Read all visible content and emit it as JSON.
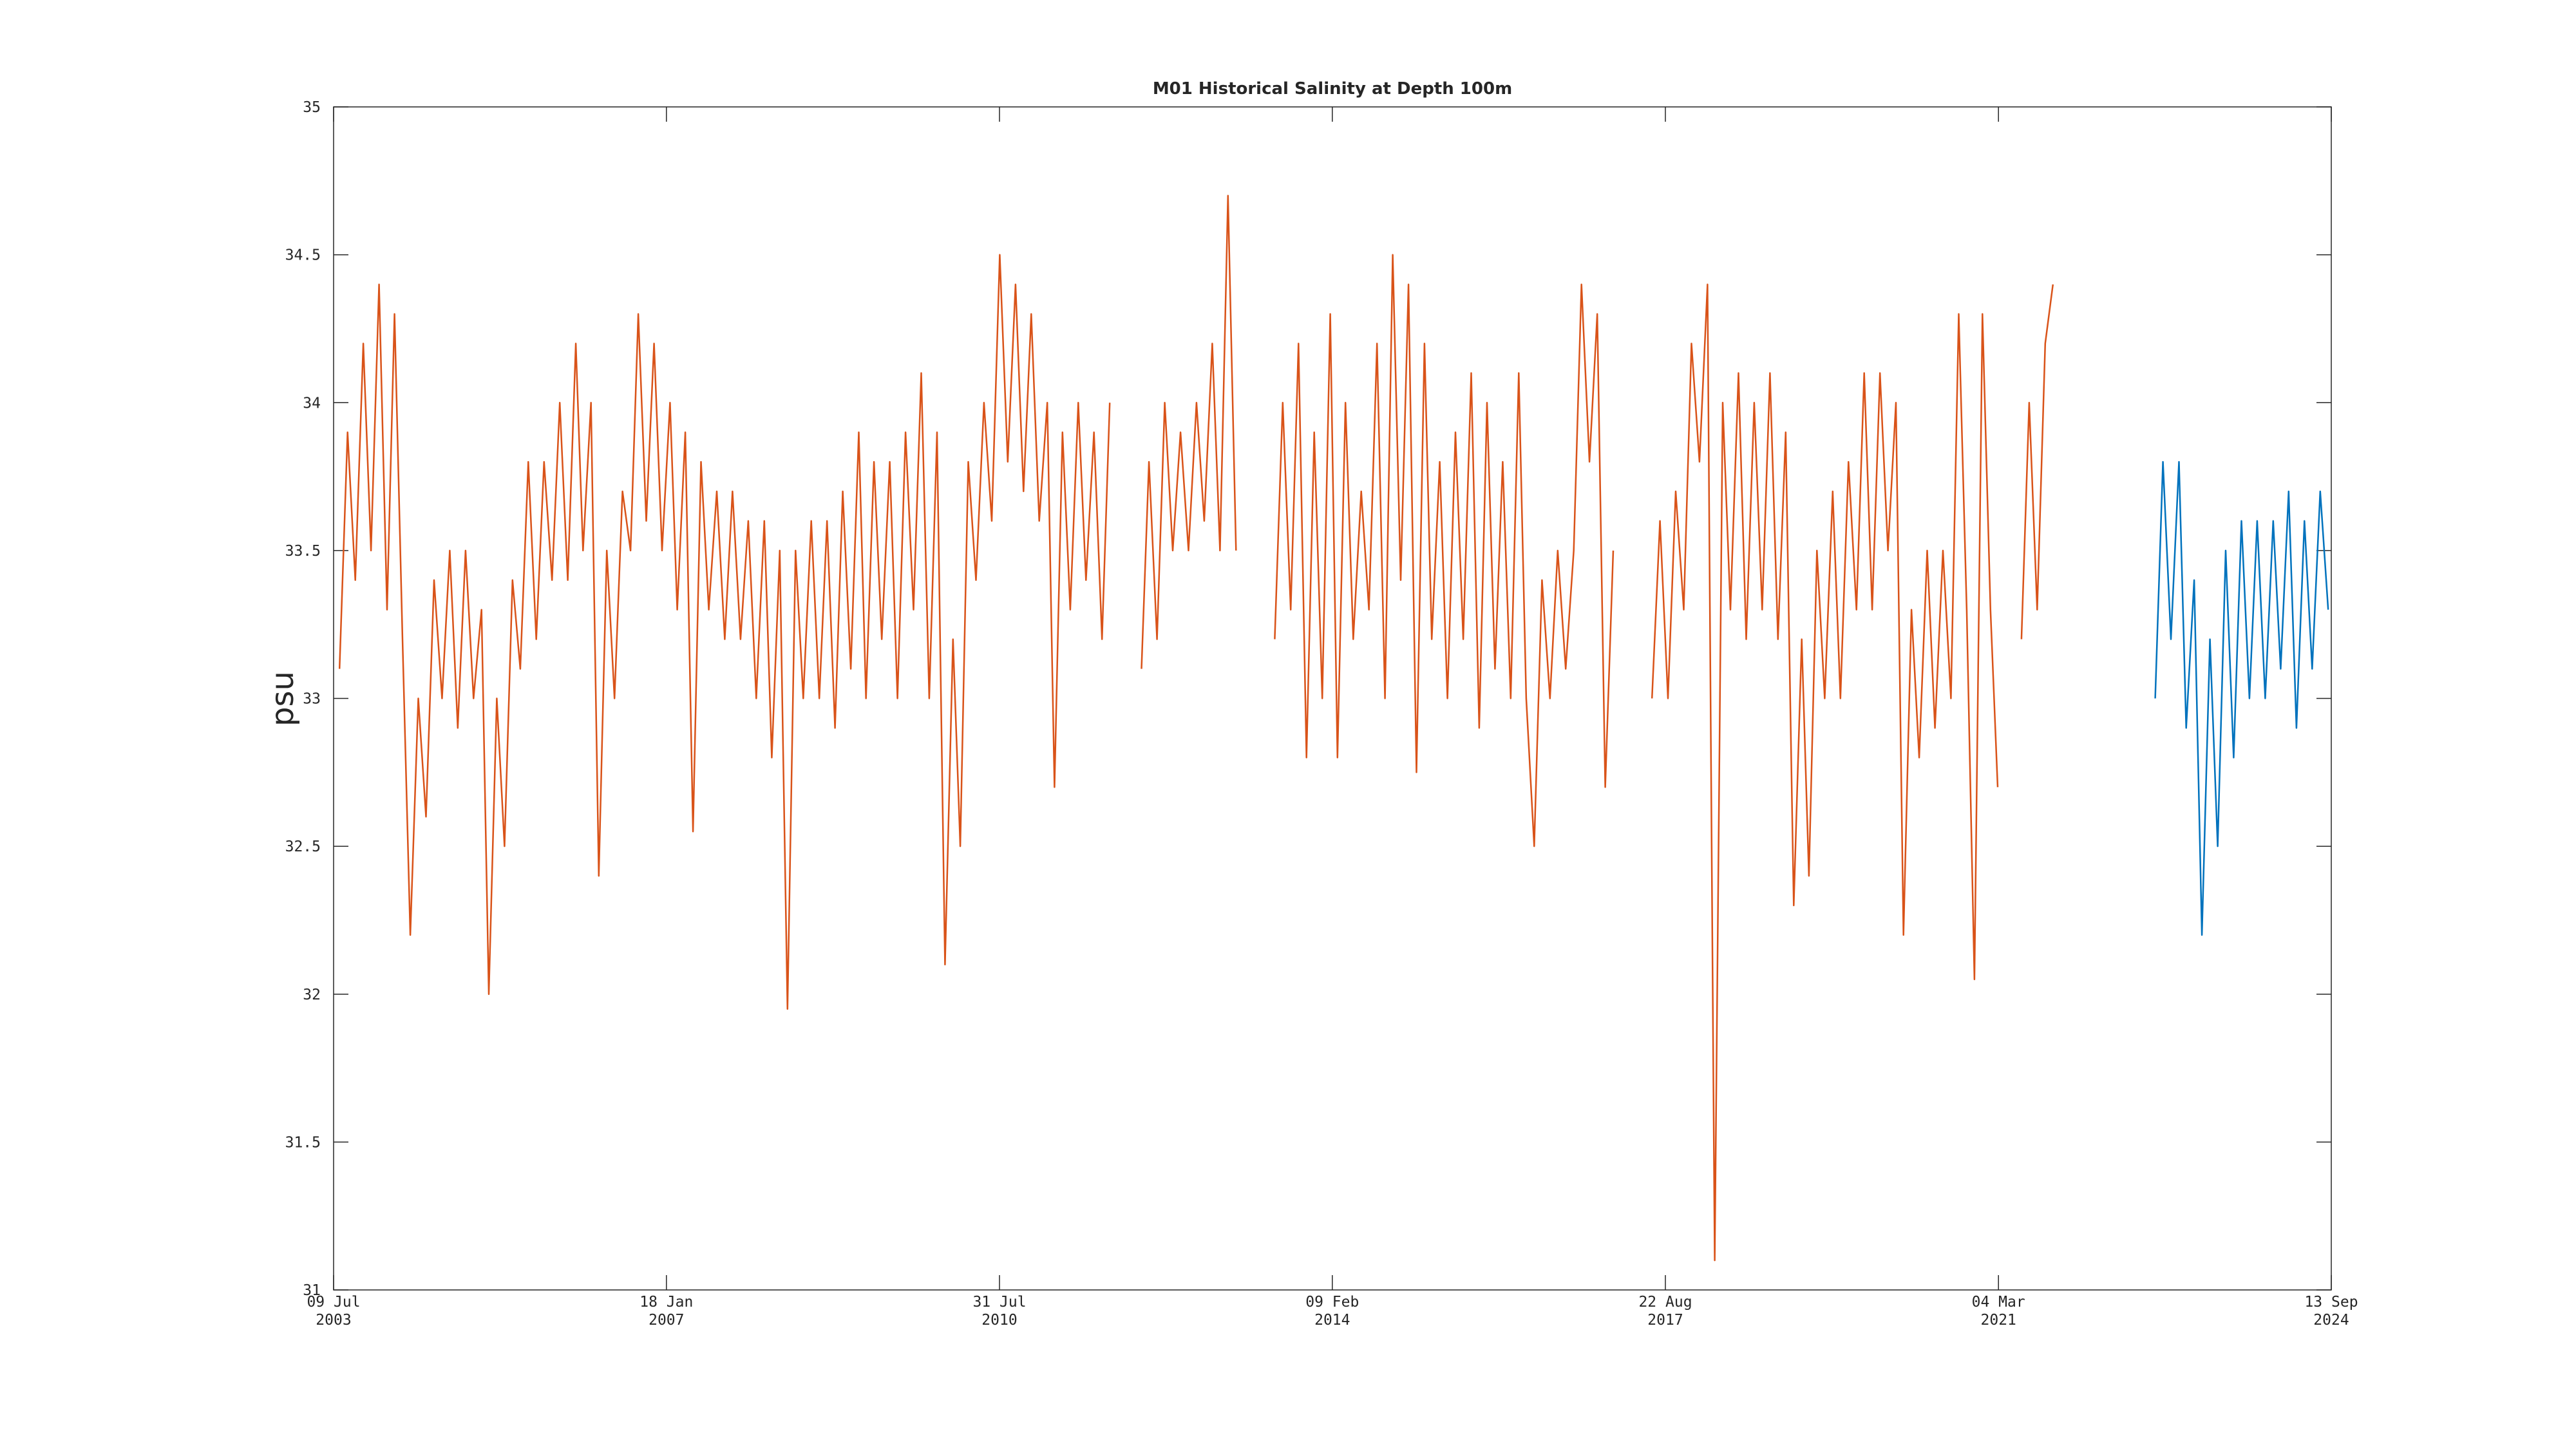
{
  "chart_data": {
    "type": "line",
    "title": "M01 Historical Salinity at Depth 100m",
    "y_label": "psu",
    "xlim": [
      "2003-07-09",
      "2024-09-13"
    ],
    "xticks": [
      {
        "value": "2003-07-09",
        "label": [
          "09 Jul",
          "2003"
        ]
      },
      {
        "value": "2007-01-18",
        "label": [
          "18 Jan",
          "2007"
        ]
      },
      {
        "value": "2010-07-31",
        "label": [
          "31 Jul",
          "2010"
        ]
      },
      {
        "value": "2014-02-09",
        "label": [
          "09 Feb",
          "2014"
        ]
      },
      {
        "value": "2017-08-22",
        "label": [
          "22 Aug",
          "2017"
        ]
      },
      {
        "value": "2021-03-04",
        "label": [
          "04 Mar",
          "2021"
        ]
      },
      {
        "value": "2024-09-13",
        "label": [
          "13 Sep",
          "2024"
        ]
      }
    ],
    "ylim": [
      31,
      35
    ],
    "yticks": [
      31,
      31.5,
      32,
      32.5,
      33,
      33.5,
      34,
      34.5,
      35
    ],
    "grid": false,
    "series": [
      {
        "color": "#D95319",
        "x": [
          "2003-08-01",
          "2003-09-01",
          "2003-10-01",
          "2003-11-01",
          "2003-12-01",
          "2004-01-01",
          "2004-02-01",
          "2004-03-01",
          "2004-04-01",
          "2004-05-01",
          "2004-06-01",
          "2004-07-01",
          "2004-08-01",
          "2004-09-01",
          "2004-10-01",
          "2004-11-01",
          "2004-12-01",
          "2005-01-01",
          "2005-02-01",
          "2005-03-01",
          "2005-04-01",
          "2005-05-01",
          "2005-06-01",
          "2005-07-01",
          "2005-08-01",
          "2005-09-01",
          "2005-10-01",
          "2005-11-01",
          "2005-12-01",
          "2006-01-01",
          "2006-02-01",
          "2006-03-01",
          "2006-04-01",
          "2006-05-01",
          "2006-06-01",
          "2006-07-01",
          "2006-08-01",
          "2006-09-01",
          "2006-10-01",
          "2006-11-01",
          "2006-12-01",
          "2007-01-01",
          "2007-02-01",
          "2007-03-01",
          "2007-04-01",
          "2007-05-01",
          "2007-06-01",
          "2007-07-01",
          "2007-08-01",
          "2007-09-01",
          "2007-10-01",
          "2007-11-01",
          "2007-12-01",
          "2008-01-01",
          "2008-02-01",
          "2008-03-01",
          "2008-04-01",
          "2008-05-01",
          "2008-06-01",
          "2008-07-01",
          "2008-08-01",
          "2008-09-01",
          "2008-10-01",
          "2008-11-01",
          "2008-12-01",
          "2009-01-01",
          "2009-02-01",
          "2009-03-01",
          "2009-04-01",
          "2009-05-01",
          "2009-06-01",
          "2009-07-01",
          "2009-08-01",
          "2009-09-01",
          "2009-10-01",
          "2009-11-01",
          "2009-12-01",
          "2010-01-01",
          "2010-02-01",
          "2010-03-01",
          "2010-04-01",
          "2010-05-01",
          "2010-06-01",
          "2010-07-01",
          "2010-08-01",
          "2010-09-01",
          "2010-10-01",
          "2010-11-01",
          "2010-12-01",
          "2011-01-01",
          "2011-02-01",
          "2011-03-01",
          "2011-04-01",
          "2011-05-01",
          "2011-06-01",
          "2011-07-01",
          "2011-08-01",
          "2011-09-01",
          "2011-10-01",
          "2011-11-01",
          "2011-12-01",
          "2012-01-01",
          "2012-02-01",
          "2012-03-01",
          "2012-04-01",
          "2012-05-01",
          "2012-06-01",
          "2012-07-01",
          "2012-08-01",
          "2012-09-01",
          "2012-10-01",
          "2012-11-01",
          "2012-12-01",
          "2013-01-01",
          "2013-02-01",
          "2013-03-01",
          "2013-04-01",
          "2013-05-01",
          "2013-06-01",
          "2013-07-01",
          "2013-08-01",
          "2013-09-01",
          "2013-10-01",
          "2013-11-01",
          "2013-12-01",
          "2014-01-01",
          "2014-02-01",
          "2014-03-01",
          "2014-04-01",
          "2014-05-01",
          "2014-06-01",
          "2014-07-01",
          "2014-08-01",
          "2014-09-01",
          "2014-10-01",
          "2014-11-01",
          "2014-12-01",
          "2015-01-01",
          "2015-02-01",
          "2015-03-01",
          "2015-04-01",
          "2015-05-01",
          "2015-06-01",
          "2015-07-01",
          "2015-08-01",
          "2015-09-01",
          "2015-10-01",
          "2015-11-01",
          "2015-12-01",
          "2016-01-01",
          "2016-02-01",
          "2016-03-01",
          "2016-04-01",
          "2016-05-01",
          "2016-06-01",
          "2016-07-01",
          "2016-08-01",
          "2016-09-01",
          "2016-10-01",
          "2016-11-01",
          "2016-12-01",
          "2017-01-01",
          "2017-02-01",
          "2017-03-01",
          "2017-04-01",
          "2017-05-01",
          "2017-06-01",
          "2017-07-01",
          "2017-08-01",
          "2017-09-01",
          "2017-10-01",
          "2017-11-01",
          "2017-12-01",
          "2018-01-01",
          "2018-02-01",
          "2018-03-01",
          "2018-04-01",
          "2018-05-01",
          "2018-06-01",
          "2018-07-01",
          "2018-08-01",
          "2018-09-01",
          "2018-10-01",
          "2018-11-01",
          "2018-12-01",
          "2019-01-01",
          "2019-02-01",
          "2019-03-01",
          "2019-04-01",
          "2019-05-01",
          "2019-06-01",
          "2019-07-01",
          "2019-08-01",
          "2019-09-01",
          "2019-10-01",
          "2019-11-01",
          "2019-12-01",
          "2020-01-01",
          "2020-02-01",
          "2020-03-01",
          "2020-04-01",
          "2020-05-01",
          "2020-06-01",
          "2020-07-01",
          "2020-08-01",
          "2020-09-01",
          "2020-10-01",
          "2020-11-01",
          "2020-12-01",
          "2021-01-01",
          "2021-02-01",
          "2021-03-01",
          "2021-04-01",
          "2021-05-01",
          "2021-06-01",
          "2021-07-01",
          "2021-08-01",
          "2021-09-01",
          "2021-10-01"
        ],
        "values": [
          33.1,
          33.9,
          33.4,
          34.2,
          33.5,
          34.4,
          33.3,
          34.3,
          33.2,
          32.2,
          33.0,
          32.6,
          33.4,
          33.0,
          33.5,
          32.9,
          33.5,
          33.0,
          33.3,
          32.0,
          33.0,
          32.5,
          33.4,
          33.1,
          33.8,
          33.2,
          33.8,
          33.4,
          34.0,
          33.4,
          34.2,
          33.5,
          34.0,
          32.4,
          33.5,
          33.0,
          33.7,
          33.5,
          34.3,
          33.6,
          34.2,
          33.5,
          34.0,
          33.3,
          33.9,
          32.55,
          33.8,
          33.3,
          33.7,
          33.2,
          33.7,
          33.2,
          33.6,
          33.0,
          33.6,
          32.8,
          33.5,
          31.95,
          33.5,
          33.0,
          33.6,
          33.0,
          33.6,
          32.9,
          33.7,
          33.1,
          33.9,
          33.0,
          33.8,
          33.2,
          33.8,
          33.0,
          33.9,
          33.3,
          34.1,
          33.0,
          33.9,
          32.1,
          33.2,
          32.5,
          33.8,
          33.4,
          34.0,
          33.6,
          34.5,
          33.8,
          34.4,
          33.7,
          34.3,
          33.6,
          34.0,
          32.7,
          33.9,
          33.3,
          34.0,
          33.4,
          33.9,
          33.2,
          34.0,
          null,
          null,
          null,
          33.1,
          33.8,
          33.2,
          34.0,
          33.5,
          33.9,
          33.5,
          34.0,
          33.6,
          34.2,
          33.5,
          34.7,
          33.5,
          null,
          null,
          null,
          null,
          33.2,
          34.0,
          33.3,
          34.2,
          32.8,
          33.9,
          33.0,
          34.3,
          32.8,
          34.0,
          33.2,
          33.7,
          33.3,
          34.2,
          33.0,
          34.5,
          33.4,
          34.4,
          32.75,
          34.2,
          33.2,
          33.8,
          33.0,
          33.9,
          33.2,
          34.1,
          32.9,
          34.0,
          33.1,
          33.8,
          33.0,
          34.1,
          33.0,
          32.5,
          33.4,
          33.0,
          33.5,
          33.1,
          33.5,
          34.4,
          33.8,
          34.3,
          32.7,
          33.5,
          null,
          null,
          null,
          null,
          33.0,
          33.6,
          33.0,
          33.7,
          33.3,
          34.2,
          33.8,
          34.4,
          31.1,
          34.0,
          33.3,
          34.1,
          33.2,
          34.0,
          33.3,
          34.1,
          33.2,
          33.9,
          32.3,
          33.2,
          32.4,
          33.5,
          33.0,
          33.7,
          33.0,
          33.8,
          33.3,
          34.1,
          33.3,
          34.1,
          33.5,
          34.0,
          32.2,
          33.3,
          32.8,
          33.5,
          32.9,
          33.5,
          33.0,
          34.3,
          33.3,
          32.05,
          34.3,
          33.3,
          32.7,
          null,
          null,
          33.2,
          34.0,
          33.3,
          34.2,
          34.4
        ]
      },
      {
        "color": "#0072BD",
        "x": [
          "2022-11-01",
          "2022-12-01",
          "2023-01-01",
          "2023-02-01",
          "2023-03-01",
          "2023-04-01",
          "2023-05-01",
          "2023-06-01",
          "2023-07-01",
          "2023-08-01",
          "2023-09-01",
          "2023-10-01",
          "2023-11-01",
          "2023-12-01",
          "2024-01-01",
          "2024-02-01",
          "2024-03-01",
          "2024-04-01",
          "2024-05-01",
          "2024-06-01",
          "2024-07-01",
          "2024-08-01",
          "2024-09-01"
        ],
        "values": [
          33.0,
          33.8,
          33.2,
          33.8,
          32.9,
          33.4,
          32.2,
          33.2,
          32.5,
          33.5,
          32.8,
          33.6,
          33.0,
          33.6,
          33.0,
          33.6,
          33.1,
          33.7,
          32.9,
          33.6,
          33.1,
          33.7,
          33.3
        ]
      }
    ]
  }
}
